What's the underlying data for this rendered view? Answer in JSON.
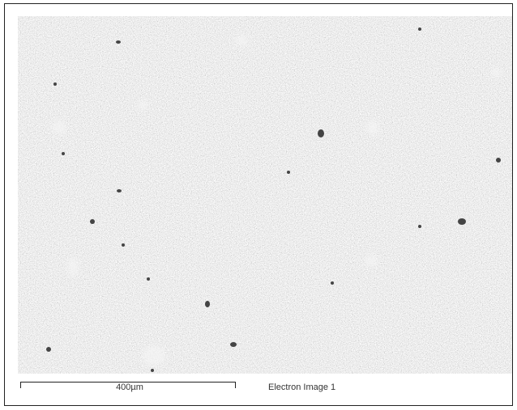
{
  "image": {
    "scale_bar_label": "400µm",
    "caption": "Electron Image 1"
  }
}
